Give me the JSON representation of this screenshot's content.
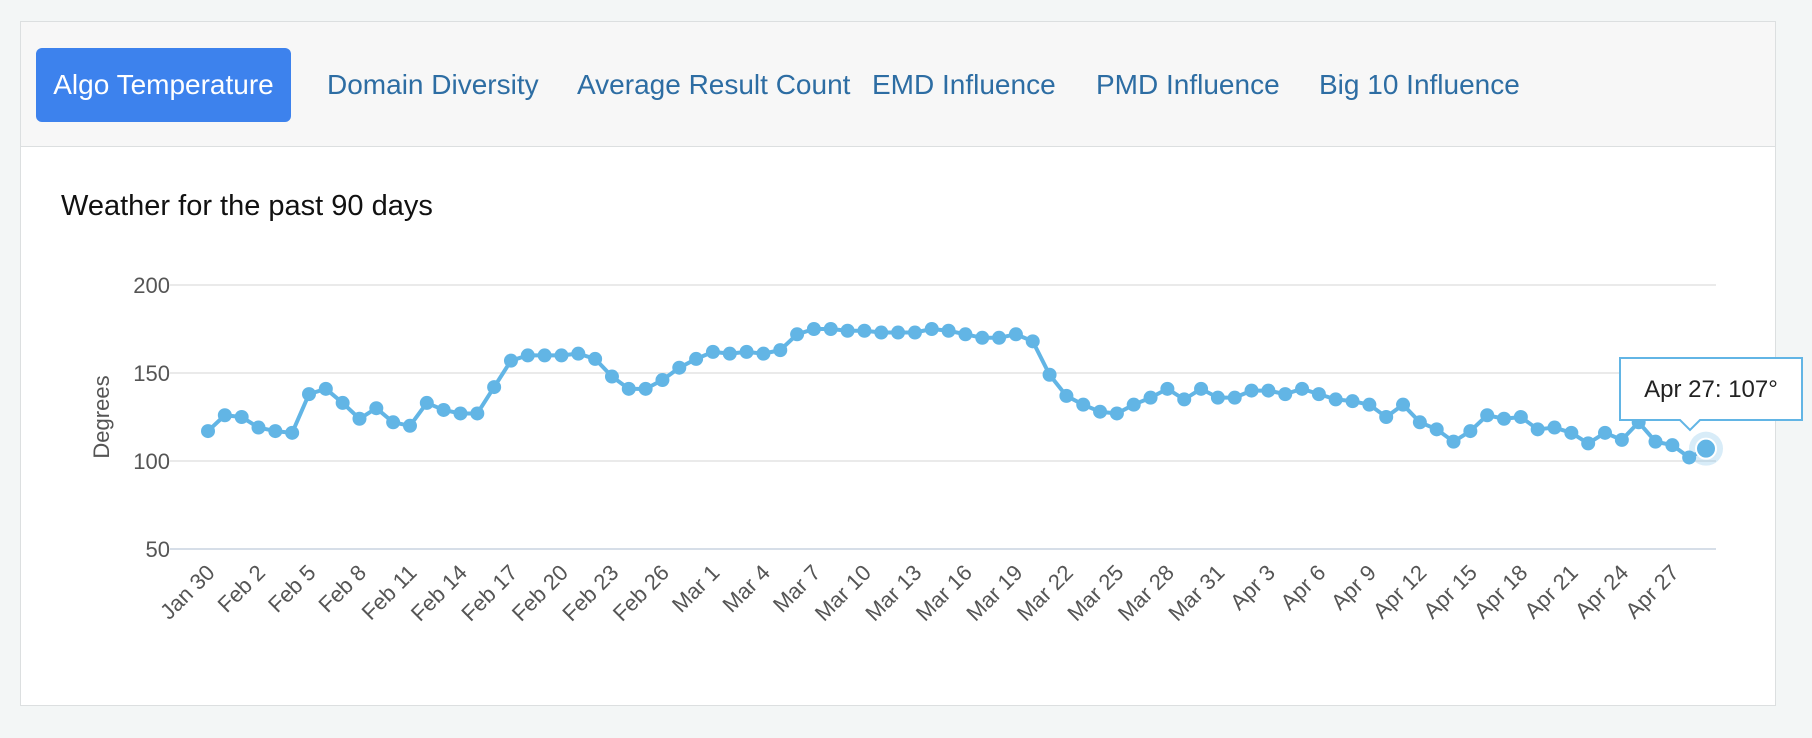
{
  "tabs": [
    {
      "label": "Algo Temperature",
      "active": true
    },
    {
      "label": "Domain Diversity",
      "active": false
    },
    {
      "label": "Average Result Count",
      "active": false
    },
    {
      "label": "EMD Influence",
      "active": false
    },
    {
      "label": "PMD Influence",
      "active": false
    },
    {
      "label": "Big 10 Influence",
      "active": false
    }
  ],
  "colors": {
    "accent": "#3d82ed",
    "series": "#62b5e5",
    "tab_text": "#2d6da3"
  },
  "chart_data": {
    "type": "line",
    "title": "Weather for the past 90 days",
    "ylabel": "Degrees",
    "xlabel": "",
    "ylim": [
      50,
      200
    ],
    "yticks": [
      50,
      100,
      150,
      200
    ],
    "grid": true,
    "x_tick_labels": [
      "Jan 30",
      "Feb 2",
      "Feb 5",
      "Feb 8",
      "Feb 11",
      "Feb 14",
      "Feb 17",
      "Feb 20",
      "Feb 23",
      "Feb 26",
      "Mar 1",
      "Mar 4",
      "Mar 7",
      "Mar 10",
      "Mar 13",
      "Mar 16",
      "Mar 19",
      "Mar 22",
      "Mar 25",
      "Mar 28",
      "Mar 31",
      "Apr 3",
      "Apr 6",
      "Apr 9",
      "Apr 12",
      "Apr 15",
      "Apr 18",
      "Apr 21",
      "Apr 24",
      "Apr 27"
    ],
    "series": [
      {
        "name": "",
        "values": [
          117,
          126,
          125,
          119,
          117,
          116,
          138,
          141,
          133,
          124,
          130,
          122,
          120,
          133,
          129,
          127,
          127,
          142,
          157,
          160,
          160,
          160,
          161,
          158,
          148,
          141,
          141,
          146,
          153,
          158,
          162,
          161,
          162,
          161,
          163,
          172,
          175,
          175,
          174,
          174,
          173,
          173,
          173,
          175,
          174,
          172,
          170,
          170,
          172,
          168,
          149,
          137,
          132,
          128,
          127,
          132,
          136,
          141,
          135,
          141,
          136,
          136,
          140,
          140,
          138,
          141,
          138,
          135,
          134,
          132,
          125,
          132,
          122,
          118,
          111,
          117,
          126,
          124,
          125,
          118,
          119,
          116,
          110,
          116,
          112,
          122,
          111,
          109,
          102,
          107
        ]
      }
    ],
    "tooltip": {
      "text": "Apr 27: 107°"
    }
  }
}
